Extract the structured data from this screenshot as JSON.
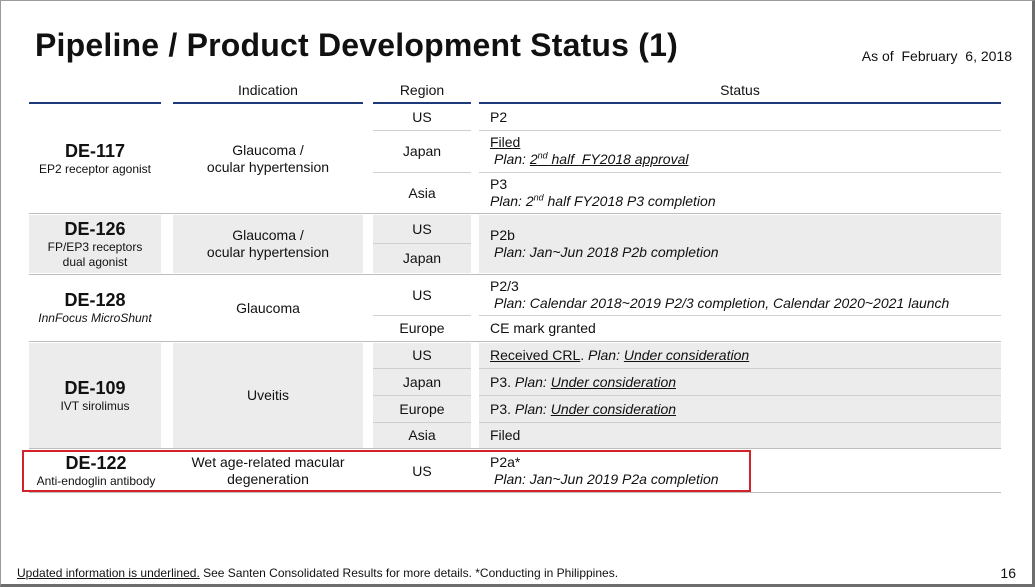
{
  "page": {
    "title": "Pipeline / Product Development Status (1)",
    "as_of_label": "As of",
    "as_of_date": "February  6, 2018",
    "page_number": "16"
  },
  "table": {
    "headers": {
      "indication": "Indication",
      "region": "Region",
      "status": "Status"
    },
    "products": [
      {
        "code": "DE-117",
        "subtitle": "EP2 receptor agonist",
        "indication_lines": [
          "Glaucoma /",
          "ocular hypertension"
        ],
        "rows": [
          {
            "region": "US",
            "status": "P2"
          },
          {
            "region": "Japan",
            "status_line1": "Filed",
            "plan_prefix": "Plan: ",
            "plan_ord": "2",
            "plan_sup": "nd",
            "plan_rest": " half  FY2018 approval"
          },
          {
            "region": "Asia",
            "status_line1": "P3",
            "plan_prefix": "Plan: ",
            "plan_ord": "2",
            "plan_sup": "nd",
            "plan_rest": " half FY2018 P3 completion"
          }
        ]
      },
      {
        "code": "DE-126",
        "subtitle_lines": [
          "FP/EP3 receptors",
          "dual agonist"
        ],
        "indication_lines": [
          "Glaucoma /",
          "ocular hypertension"
        ],
        "regions": [
          "US",
          "Japan"
        ],
        "status_line1": "P2b",
        "plan": "Plan: Jan~Jun 2018 P2b completion"
      },
      {
        "code": "DE-128",
        "subtitle": "InnFocus MicroShunt",
        "indication": "Glaucoma",
        "rows": [
          {
            "region": "US",
            "status_line1": "P2/3",
            "plan": "Plan: Calendar 2018~2019 P2/3 completion, Calendar 2020~2021 launch"
          },
          {
            "region": "Europe",
            "status": "CE mark granted"
          }
        ]
      },
      {
        "code": "DE-109",
        "subtitle": "IVT sirolimus",
        "indication": "Uveitis",
        "rows": [
          {
            "region": "US",
            "status_a": "Received CRL",
            "status_b": ". ",
            "plan_label": "Plan:",
            "plan_value": "Under consideration"
          },
          {
            "region": "Japan",
            "status_a": "P3. ",
            "plan_label": "Plan:",
            "plan_value": "Under consideration"
          },
          {
            "region": "Europe",
            "status_a": "P3. ",
            "plan_label": "Plan:",
            "plan_value": "Under consideration"
          },
          {
            "region": "Asia",
            "status": "Filed"
          }
        ]
      },
      {
        "code": "DE-122",
        "subtitle": "Anti-endoglin antibody",
        "indication_lines": [
          "Wet age-related macular",
          "degeneration"
        ],
        "region": "US",
        "status_line1": "P2a*",
        "plan": "Plan: Jan~Jun 2019 P2a completion"
      }
    ]
  },
  "footer": {
    "underlined": "Updated information is underlined.",
    "rest": " See Santen Consolidated Results for more details. *Conducting in Philippines."
  },
  "colors": {
    "header_rule": "#1f3a7a",
    "highlight_box": "#d2232a",
    "row_shade": "#ececec"
  }
}
